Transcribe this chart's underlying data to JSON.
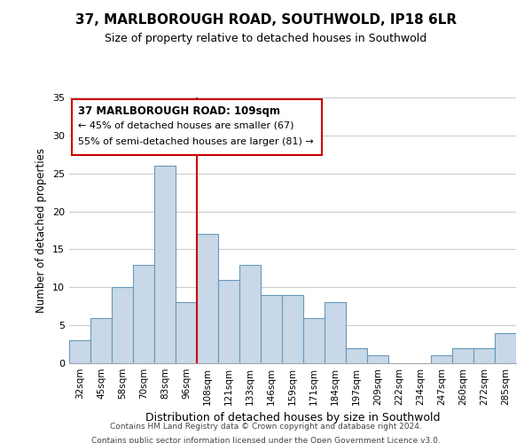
{
  "title": "37, MARLBOROUGH ROAD, SOUTHWOLD, IP18 6LR",
  "subtitle": "Size of property relative to detached houses in Southwold",
  "xlabel": "Distribution of detached houses by size in Southwold",
  "ylabel": "Number of detached properties",
  "categories": [
    "32sqm",
    "45sqm",
    "58sqm",
    "70sqm",
    "83sqm",
    "96sqm",
    "108sqm",
    "121sqm",
    "133sqm",
    "146sqm",
    "159sqm",
    "171sqm",
    "184sqm",
    "197sqm",
    "209sqm",
    "222sqm",
    "234sqm",
    "247sqm",
    "260sqm",
    "272sqm",
    "285sqm"
  ],
  "values": [
    3,
    6,
    10,
    13,
    26,
    8,
    17,
    11,
    13,
    9,
    9,
    6,
    8,
    2,
    1,
    0,
    0,
    1,
    2,
    2,
    4
  ],
  "bar_color": "#c8d8e8",
  "bar_edge_color": "#6699bb",
  "highlight_index": 6,
  "highlight_line_color": "#cc0000",
  "ylim": [
    0,
    35
  ],
  "yticks": [
    0,
    5,
    10,
    15,
    20,
    25,
    30,
    35
  ],
  "annotation_title": "37 MARLBOROUGH ROAD: 109sqm",
  "annotation_line1": "← 45% of detached houses are smaller (67)",
  "annotation_line2": "55% of semi-detached houses are larger (81) →",
  "annotation_box_color": "#ffffff",
  "annotation_box_edge": "#cc0000",
  "footer1": "Contains HM Land Registry data © Crown copyright and database right 2024.",
  "footer2": "Contains public sector information licensed under the Open Government Licence v3.0.",
  "background_color": "#ffffff",
  "grid_color": "#cccccc"
}
